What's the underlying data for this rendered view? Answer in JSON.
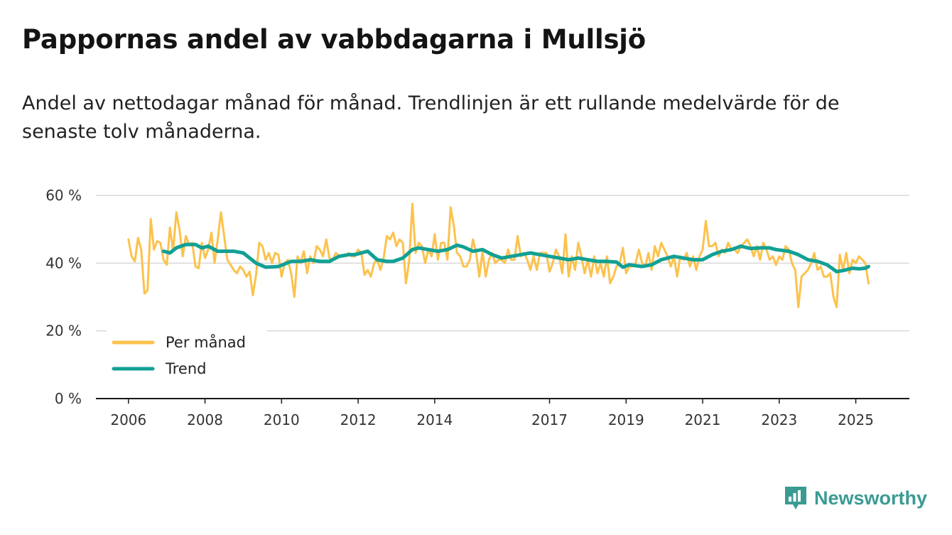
{
  "header": {
    "title": "Pappornas andel av vabbdagarna i Mullsjö",
    "subtitle": "Andel av nettodagar månad för månad. Trendlinjen är ett rullande medelvärde för de senaste tolv månaderna."
  },
  "brand": {
    "name": "Newsworthy",
    "icon": "newsworthy-logo-icon"
  },
  "colors": {
    "monthly": "#fcc24d",
    "trend": "#12a094",
    "grid": "#d9d9d9",
    "axis": "#1a1a1a",
    "brand": "#3a9b93"
  },
  "chart_data": {
    "type": "line",
    "title": "Pappornas andel av vabbdagarna i Mullsjö",
    "xlabel": "",
    "ylabel": "",
    "ylim": [
      0,
      60
    ],
    "y_ticks": [
      0,
      20,
      40,
      60
    ],
    "y_tick_labels": [
      "0 %",
      "20 %",
      "40 %",
      "60 %"
    ],
    "x_tick_labels": [
      "2006",
      "2008",
      "2010",
      "2012",
      "2014",
      "2017",
      "2019",
      "2021",
      "2023",
      "2025"
    ],
    "x_tick_values": [
      2006,
      2008,
      2010,
      2012,
      2014,
      2017,
      2019,
      2021,
      2023,
      2025
    ],
    "xlim": [
      2005.15,
      2026.4
    ],
    "legend": {
      "position": "bottom-left",
      "entries": [
        "Per månad",
        "Trend"
      ]
    },
    "series": [
      {
        "name": "Per månad",
        "color": "#fcc24d",
        "x": [
          2006.0,
          2006.083,
          2006.167,
          2006.25,
          2006.333,
          2006.417,
          2006.5,
          2006.583,
          2006.667,
          2006.75,
          2006.833,
          2006.917,
          2007.0,
          2007.083,
          2007.167,
          2007.25,
          2007.333,
          2007.417,
          2007.5,
          2007.583,
          2007.667,
          2007.75,
          2007.833,
          2007.917,
          2008.0,
          2008.083,
          2008.167,
          2008.25,
          2008.333,
          2008.417,
          2008.5,
          2008.583,
          2008.667,
          2008.75,
          2008.833,
          2008.917,
          2009.0,
          2009.083,
          2009.167,
          2009.25,
          2009.333,
          2009.417,
          2009.5,
          2009.583,
          2009.667,
          2009.75,
          2009.833,
          2009.917,
          2010.0,
          2010.083,
          2010.167,
          2010.25,
          2010.333,
          2010.417,
          2010.5,
          2010.583,
          2010.667,
          2010.75,
          2010.833,
          2010.917,
          2011.0,
          2011.083,
          2011.167,
          2011.25,
          2011.333,
          2011.417,
          2011.5,
          2011.583,
          2011.667,
          2011.75,
          2011.833,
          2011.917,
          2012.0,
          2012.083,
          2012.167,
          2012.25,
          2012.333,
          2012.417,
          2012.5,
          2012.583,
          2012.667,
          2012.75,
          2012.833,
          2012.917,
          2013.0,
          2013.083,
          2013.167,
          2013.25,
          2013.333,
          2013.417,
          2013.5,
          2013.583,
          2013.667,
          2013.75,
          2013.833,
          2013.917,
          2014.0,
          2014.083,
          2014.167,
          2014.25,
          2014.333,
          2014.417,
          2014.5,
          2014.583,
          2014.667,
          2014.75,
          2014.833,
          2014.917,
          2015.0,
          2015.083,
          2015.167,
          2015.25,
          2015.333,
          2015.417,
          2015.5,
          2015.583,
          2015.667,
          2015.75,
          2015.833,
          2015.917,
          2016.0,
          2016.083,
          2016.167,
          2016.25,
          2016.333,
          2016.417,
          2016.5,
          2016.583,
          2016.667,
          2016.75,
          2016.833,
          2016.917,
          2017.0,
          2017.083,
          2017.167,
          2017.25,
          2017.333,
          2017.417,
          2017.5,
          2017.583,
          2017.667,
          2017.75,
          2017.833,
          2017.917,
          2018.0,
          2018.083,
          2018.167,
          2018.25,
          2018.333,
          2018.417,
          2018.5,
          2018.583,
          2018.667,
          2018.75,
          2018.833,
          2018.917,
          2019.0,
          2019.083,
          2019.167,
          2019.25,
          2019.333,
          2019.417,
          2019.5,
          2019.583,
          2019.667,
          2019.75,
          2019.833,
          2019.917,
          2020.0,
          2020.083,
          2020.167,
          2020.25,
          2020.333,
          2020.417,
          2020.5,
          2020.583,
          2020.667,
          2020.75,
          2020.833,
          2020.917,
          2021.0,
          2021.083,
          2021.167,
          2021.25,
          2021.333,
          2021.417,
          2021.5,
          2021.583,
          2021.667,
          2021.75,
          2021.833,
          2021.917,
          2022.0,
          2022.083,
          2022.167,
          2022.25,
          2022.333,
          2022.417,
          2022.5,
          2022.583,
          2022.667,
          2022.75,
          2022.833,
          2022.917,
          2023.0,
          2023.083,
          2023.167,
          2023.25,
          2023.333,
          2023.417,
          2023.5,
          2023.583,
          2023.667,
          2023.75,
          2023.833,
          2023.917,
          2024.0,
          2024.083,
          2024.167,
          2024.25,
          2024.333,
          2024.417,
          2024.5,
          2024.583,
          2024.667,
          2024.75,
          2024.833,
          2024.917,
          2025.0,
          2025.083,
          2025.167,
          2025.25,
          2025.333
        ],
        "values": [
          47,
          42,
          40.5,
          47.5,
          44,
          31,
          32,
          53,
          44,
          46.5,
          46,
          41,
          39.5,
          50.5,
          43.5,
          55,
          50,
          42,
          48,
          45.5,
          46,
          39,
          38.5,
          46,
          41.5,
          44,
          49,
          40,
          47,
          55,
          48,
          41,
          39.5,
          38,
          37,
          39,
          38,
          36,
          37.5,
          30.5,
          36.5,
          46,
          45,
          41,
          43,
          40,
          43,
          42.5,
          36,
          40,
          41,
          37,
          30,
          42,
          40,
          43.5,
          37,
          42,
          40,
          45,
          44,
          42,
          47,
          41.5,
          41,
          43,
          42,
          42,
          42,
          43,
          42,
          42,
          44,
          43,
          36.5,
          38,
          36,
          40,
          41,
          38,
          41.5,
          48,
          47,
          49,
          45,
          47,
          46,
          34,
          40.5,
          57.5,
          43,
          46,
          45,
          40,
          44,
          42,
          48.5,
          41,
          46,
          46,
          41,
          56.5,
          51,
          43,
          42,
          39,
          39,
          41,
          47,
          43,
          36,
          43.5,
          36,
          41,
          43,
          40,
          41,
          41,
          40,
          44,
          41,
          41,
          48,
          42,
          43,
          41,
          38,
          42,
          38,
          43,
          43,
          43,
          37.5,
          40,
          44,
          42,
          37,
          48.5,
          36,
          42,
          38,
          46,
          42,
          37,
          41,
          36,
          42,
          37,
          40,
          36,
          42,
          34,
          36,
          39,
          40,
          44.5,
          37,
          39,
          39,
          40,
          44,
          40,
          39,
          43,
          38,
          45,
          42,
          46,
          44,
          42,
          39,
          42,
          36,
          42,
          41,
          43,
          39,
          42,
          38,
          42,
          44,
          52.5,
          45,
          45,
          46,
          42,
          44,
          43,
          46,
          44,
          44,
          43,
          45,
          46,
          47,
          45,
          42,
          45,
          41,
          46,
          44,
          41,
          42,
          39.5,
          42,
          41,
          45,
          44,
          40,
          38,
          27,
          36,
          37,
          38,
          40,
          43,
          38,
          39,
          36,
          36,
          37,
          30,
          27,
          42.5,
          38,
          43,
          37,
          41,
          40,
          42,
          41,
          40,
          34
        ]
      },
      {
        "name": "Trend",
        "color": "#12a094",
        "x": [
          2006.917,
          2007.083,
          2007.25,
          2007.5,
          2007.75,
          2007.917,
          2008.083,
          2008.333,
          2008.583,
          2008.75,
          2009.0,
          2009.333,
          2009.583,
          2009.917,
          2010.25,
          2010.5,
          2010.75,
          2011.0,
          2011.25,
          2011.5,
          2011.75,
          2011.917,
          2012.25,
          2012.5,
          2012.75,
          2012.917,
          2013.167,
          2013.417,
          2013.583,
          2013.833,
          2014.083,
          2014.333,
          2014.583,
          2014.75,
          2015.0,
          2015.25,
          2015.5,
          2015.75,
          2016.0,
          2016.25,
          2016.5,
          2016.75,
          2017.0,
          2017.25,
          2017.5,
          2017.75,
          2018.0,
          2018.25,
          2018.5,
          2018.75,
          2018.917,
          2019.083,
          2019.417,
          2019.667,
          2019.917,
          2020.25,
          2020.5,
          2020.75,
          2021.0,
          2021.25,
          2021.5,
          2021.75,
          2022.0,
          2022.25,
          2022.5,
          2022.75,
          2022.917,
          2023.25,
          2023.5,
          2023.75,
          2024.0,
          2024.25,
          2024.5,
          2024.667,
          2024.917,
          2025.083,
          2025.25,
          2025.333
        ],
        "values": [
          43.5,
          43,
          44.5,
          45.5,
          45.5,
          44.5,
          45,
          43.5,
          43.5,
          43.5,
          43,
          40,
          38.8,
          39,
          40.5,
          40.5,
          41,
          40.5,
          40.5,
          42,
          42.5,
          42.5,
          43.5,
          41,
          40.5,
          40.5,
          41.5,
          44,
          44.5,
          44,
          43.5,
          44,
          45.3,
          44.8,
          43.5,
          44,
          42.5,
          41.5,
          42,
          42.5,
          43,
          42.5,
          42,
          41.5,
          41,
          41.5,
          41,
          40.5,
          40.5,
          40.3,
          38.8,
          39.5,
          39,
          39.5,
          41,
          42,
          41.5,
          41,
          41,
          42.5,
          43.5,
          44,
          45,
          44.3,
          44.5,
          44.5,
          44,
          43.5,
          42.5,
          41,
          40.5,
          39.5,
          37.5,
          37.8,
          38.5,
          38.3,
          38.5,
          39
        ]
      }
    ]
  }
}
